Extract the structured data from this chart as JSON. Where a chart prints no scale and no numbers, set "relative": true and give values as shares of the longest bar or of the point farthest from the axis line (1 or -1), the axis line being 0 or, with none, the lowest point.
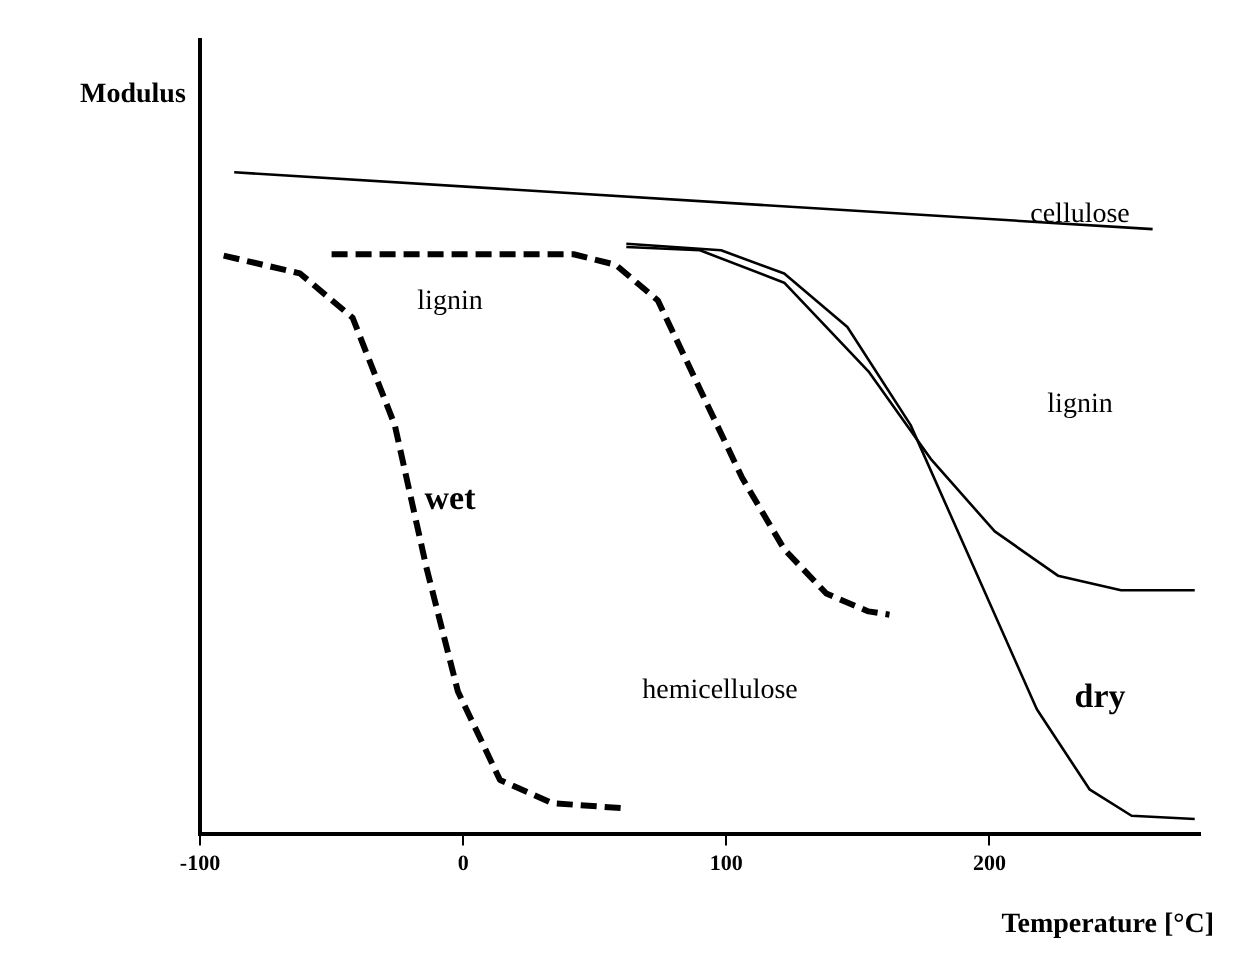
{
  "chart_data": {
    "type": "line",
    "relative": true,
    "xlabel": "Temperature [°C]",
    "ylabel": "Modulus",
    "xlim": [
      -100,
      280
    ],
    "xticks": [
      -100,
      0,
      100,
      200
    ],
    "grid": false,
    "legend": false,
    "marker": "none",
    "series": [
      {
        "color": "#000000",
        "line_style": "solid",
        "x": [
          -87,
          262
        ],
        "values": [
          1,
          0.914
        ]
      },
      {
        "color": "#000000",
        "line_style": "solid",
        "x": [
          62,
          90,
          122,
          154,
          178,
          202,
          226,
          250,
          278
        ],
        "values": [
          0.887,
          0.882,
          0.833,
          0.699,
          0.565,
          0.457,
          0.39,
          0.368,
          0.368
        ]
      },
      {
        "color": "#000000",
        "line_style": "solid",
        "x": [
          62,
          98,
          122,
          146,
          170,
          194,
          218,
          238,
          254,
          278
        ],
        "values": [
          0.892,
          0.882,
          0.847,
          0.766,
          0.618,
          0.403,
          0.188,
          0.067,
          0.027,
          0.022
        ]
      },
      {
        "color": "#000000",
        "line_style": "dashed",
        "x": [
          -50,
          42,
          58,
          74,
          90,
          106,
          122,
          138,
          154,
          162
        ],
        "values": [
          0.876,
          0.876,
          0.86,
          0.806,
          0.672,
          0.538,
          0.43,
          0.363,
          0.336,
          0.331
        ]
      },
      {
        "color": "#000000",
        "line_style": "dashed",
        "x": [
          -91,
          -62,
          -42,
          -26,
          -14,
          -2,
          14,
          34,
          62
        ],
        "values": [
          0.874,
          0.847,
          0.78,
          0.618,
          0.403,
          0.215,
          0.081,
          0.046,
          0.038
        ]
      }
    ],
    "annotations": [
      "cellulose",
      "lignin",
      "lignin",
      "wet",
      "hemicellulose",
      "dry"
    ]
  }
}
